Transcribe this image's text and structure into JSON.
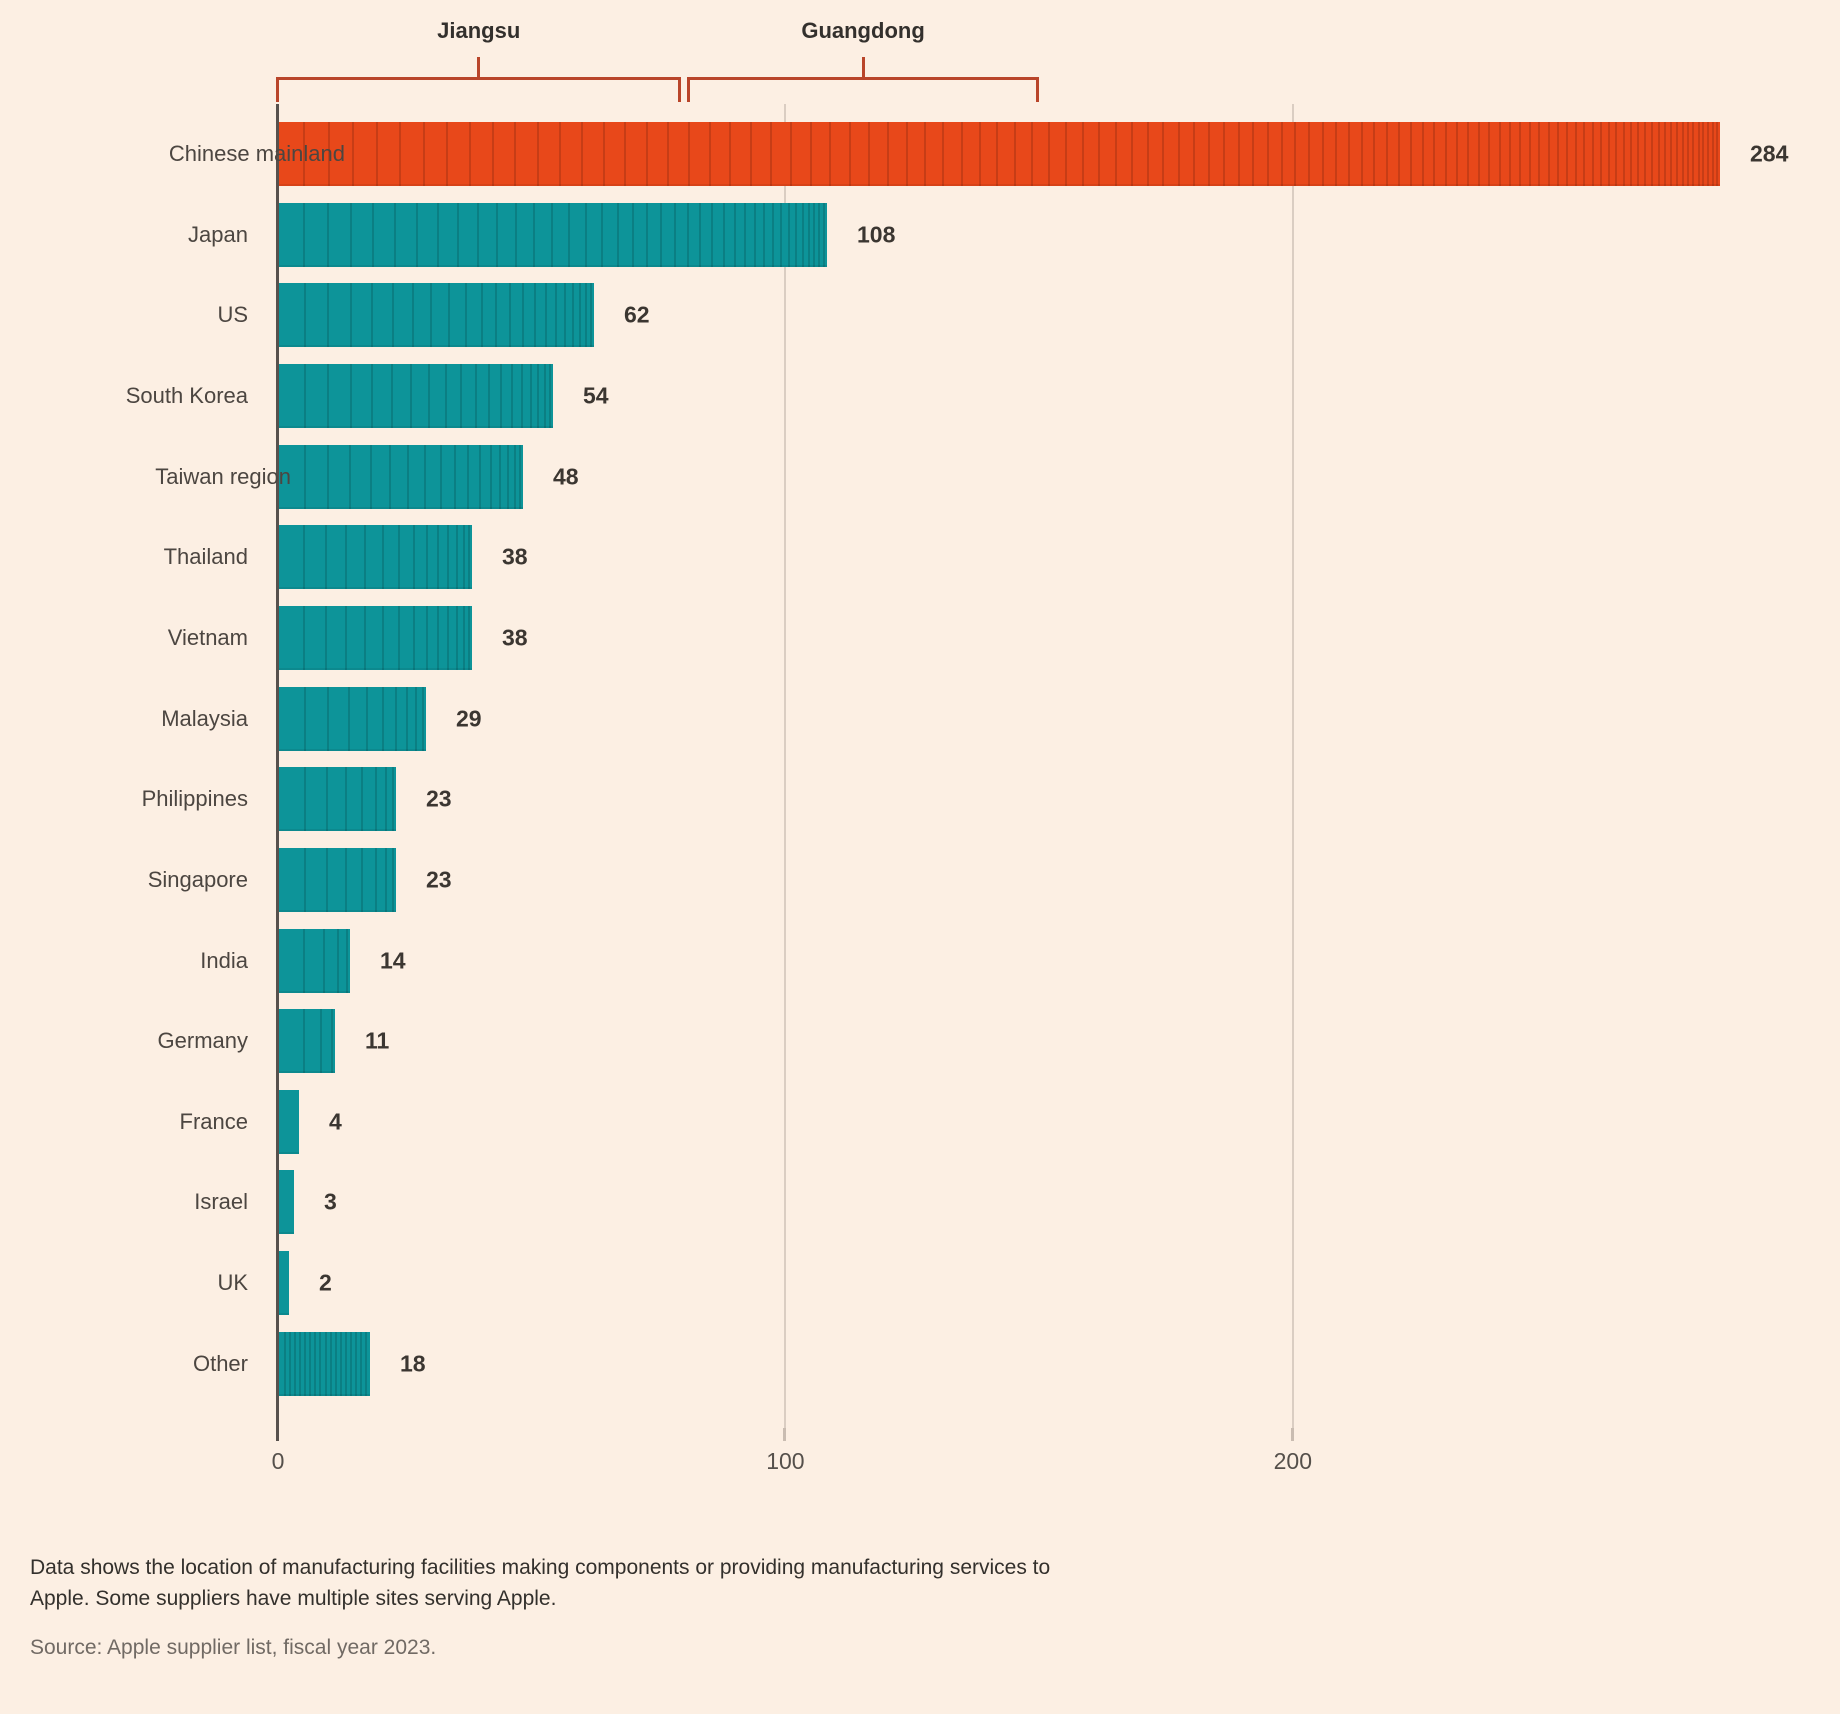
{
  "chart_data": {
    "type": "bar",
    "orientation": "horizontal",
    "categories": [
      "Chinese mainland",
      "Japan",
      "US",
      "South Korea",
      "Taiwan region",
      "Thailand",
      "Vietnam",
      "Malaysia",
      "Philippines",
      "Singapore",
      "India",
      "Germany",
      "France",
      "Israel",
      "UK",
      "Other"
    ],
    "values": [
      284,
      108,
      62,
      54,
      48,
      38,
      38,
      29,
      23,
      23,
      14,
      11,
      4,
      3,
      2,
      18
    ],
    "highlight_index": 0,
    "x_ticks": [
      0,
      100,
      200
    ],
    "xlim": [
      0,
      288
    ],
    "grid": "vertical",
    "legend": "none",
    "brackets": [
      {
        "label": "Jiangsu",
        "from": 0,
        "to": 79.5
      },
      {
        "label": "Guangdong",
        "from": 81,
        "to": 150
      }
    ]
  },
  "colors": {
    "background": "#FCEFE3",
    "bar_default": "#0D9499",
    "bar_highlight": "#E8481A",
    "segment_line": "rgba(0,0,0,0.14)",
    "bracket": "#B9452A",
    "axis": "#57514D",
    "gridline": "#DACDC2",
    "category_text": "#4C4641",
    "value_text": "#3B3631",
    "tick_text": "#55504B"
  },
  "footnote": {
    "text": "Data shows the location of manufacturing facilities making components or providing manufacturing services to Apple. Some suppliers have multiple sites serving Apple."
  },
  "source": {
    "text": "Source: Apple supplier list, fiscal year 2023."
  }
}
